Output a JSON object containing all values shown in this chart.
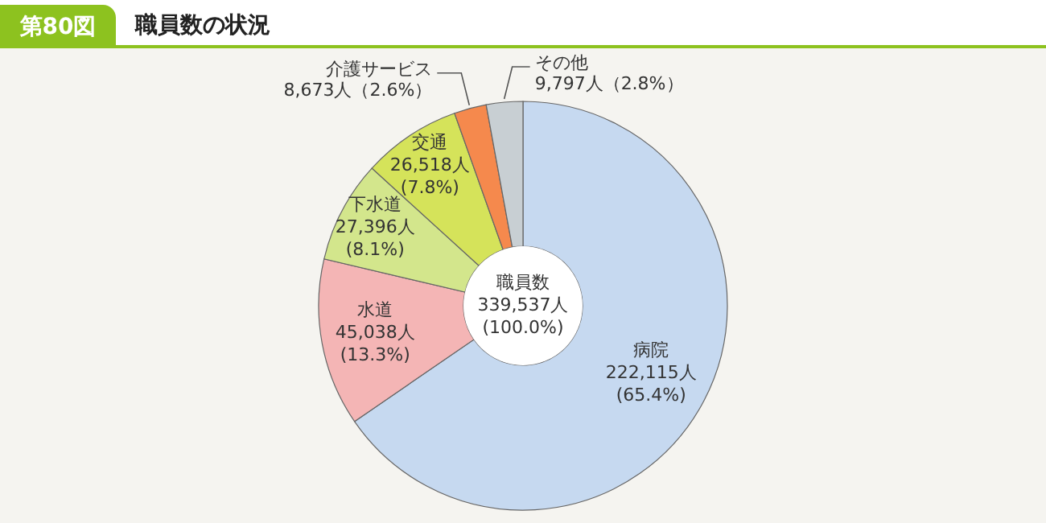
{
  "chart_data": {
    "type": "donut",
    "title": "職員数の状況",
    "annotations": [
      "第80図",
      "職員数\n339,537人\n(100.0%)"
    ],
    "categories": [
      "病院",
      "水道",
      "下水道",
      "交通",
      "介護サービス",
      "その他"
    ],
    "values": [
      222115,
      45038,
      27396,
      26518,
      8673,
      9797
    ],
    "colors": [
      "#c6d9f0",
      "#f4b5b5",
      "#d3e68c",
      "#d5e35a",
      "#f5894d",
      "#c8cfd3"
    ],
    "value_labels": [
      "222,115人\n(65.4%)",
      "45,038人\n(13.3%)",
      "27,396人\n(8.1%)",
      "26,518人\n(7.8%)",
      "8,673人（2.6%）",
      "9,797人（2.8%）"
    ]
  }
}
